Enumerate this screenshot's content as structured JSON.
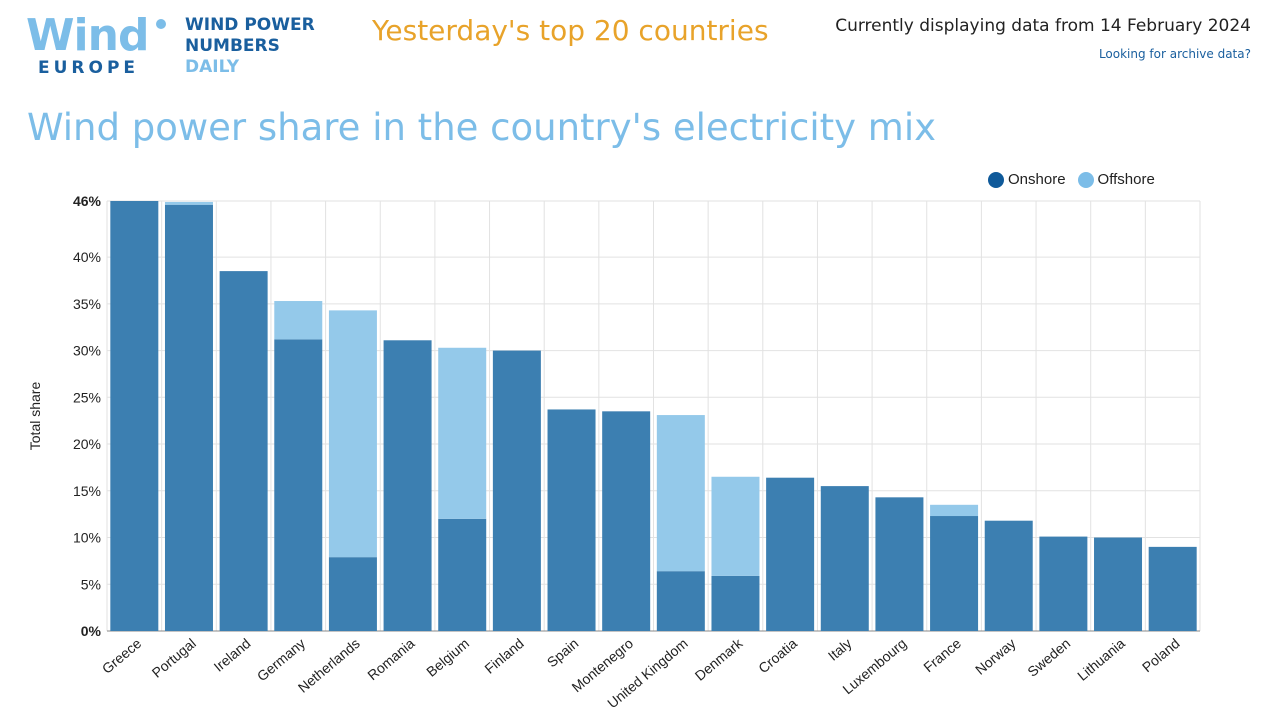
{
  "header": {
    "logo_main": "Wind",
    "logo_sub": "EUROPE",
    "logo_tagline": [
      "WIND POWER",
      "NUMBERS",
      "DAILY"
    ],
    "headline": "Yesterday's top 20 countries",
    "date_text": "Currently displaying data from 14 February 2024",
    "archive_link": "Looking for archive data?"
  },
  "colors": {
    "onshore": "#3c7fb1",
    "offshore": "#94c9ea",
    "title": "#7cbde8",
    "headline": "#e8a32a",
    "brand_dark": "#1a5f9e",
    "grid": "#e2e2e2"
  },
  "chart_data": {
    "type": "bar",
    "stacked": true,
    "title": "Wind power share in the country's electricity mix",
    "ylabel": "Total share",
    "xlabel": "",
    "ylim": [
      0,
      46
    ],
    "yticks": [
      0,
      5,
      10,
      15,
      20,
      25,
      30,
      35,
      40,
      46
    ],
    "ytick_labels": [
      "0%",
      "5%",
      "10%",
      "15%",
      "20%",
      "25%",
      "30%",
      "35%",
      "40%",
      "46%"
    ],
    "legend_position": "top-right",
    "grid": true,
    "categories": [
      "Greece",
      "Portugal",
      "Ireland",
      "Germany",
      "Netherlands",
      "Romania",
      "Belgium",
      "Finland",
      "Spain",
      "Montenegro",
      "United Kingdom",
      "Denmark",
      "Croatia",
      "Italy",
      "Luxembourg",
      "France",
      "Norway",
      "Sweden",
      "Lithuania",
      "Poland"
    ],
    "series": [
      {
        "name": "Onshore",
        "values": [
          46.0,
          45.6,
          38.5,
          31.2,
          7.9,
          31.1,
          12.0,
          30.0,
          23.7,
          23.5,
          6.4,
          5.9,
          16.4,
          15.5,
          14.3,
          12.3,
          11.8,
          10.1,
          10.0,
          9.0
        ]
      },
      {
        "name": "Offshore",
        "values": [
          0.0,
          0.3,
          0.0,
          4.1,
          26.4,
          0.0,
          18.3,
          0.0,
          0.0,
          0.0,
          16.7,
          10.6,
          0.0,
          0.0,
          0.0,
          1.2,
          0.0,
          0.0,
          0.0,
          0.0
        ]
      }
    ]
  }
}
